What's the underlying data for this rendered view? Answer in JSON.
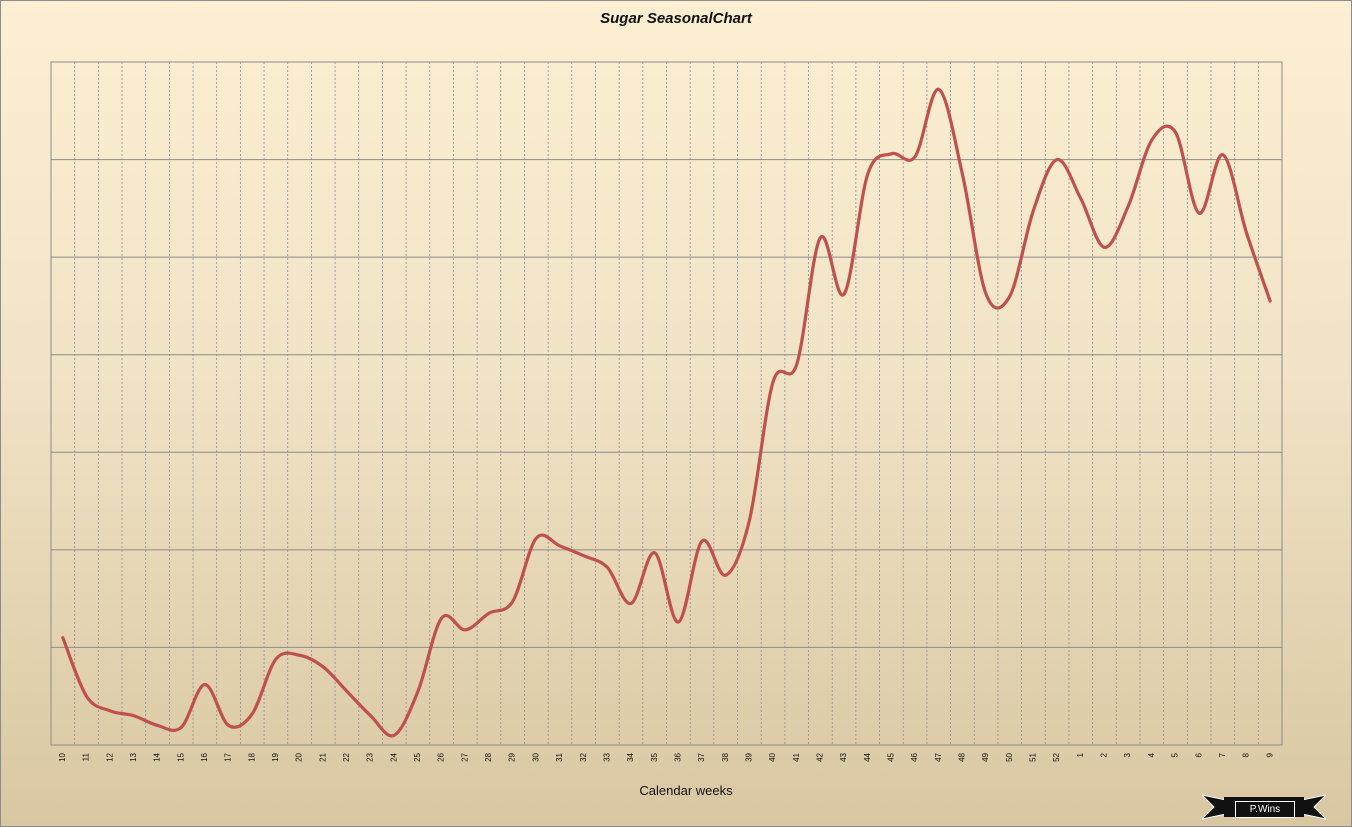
{
  "chart_data": {
    "type": "line",
    "title": "Sugar SeasonalChart",
    "xlabel": "Calendar weeks",
    "ylabel": "",
    "grid": true,
    "line_color": "#c0504d",
    "categories": [
      "10",
      "11",
      "12",
      "13",
      "14",
      "15",
      "16",
      "17",
      "18",
      "19",
      "20",
      "21",
      "22",
      "23",
      "24",
      "25",
      "26",
      "27",
      "28",
      "29",
      "30",
      "31",
      "32",
      "33",
      "34",
      "35",
      "36",
      "37",
      "38",
      "39",
      "40",
      "41",
      "42",
      "43",
      "44",
      "45",
      "46",
      "47",
      "48",
      "49",
      "50",
      "51",
      "52",
      "1",
      "2",
      "3",
      "4",
      "5",
      "6",
      "7",
      "8",
      "9"
    ],
    "values": [
      1.1,
      0.5,
      0.35,
      0.3,
      0.2,
      0.18,
      0.62,
      0.2,
      0.32,
      0.88,
      0.92,
      0.8,
      0.55,
      0.3,
      0.1,
      0.55,
      1.3,
      1.18,
      1.35,
      1.47,
      2.12,
      2.04,
      1.94,
      1.82,
      1.45,
      1.97,
      1.26,
      2.09,
      1.74,
      2.3,
      3.72,
      3.9,
      5.2,
      4.62,
      5.85,
      6.06,
      6.03,
      6.72,
      5.85,
      4.62,
      4.6,
      5.48,
      6.0,
      5.6,
      5.1,
      5.52,
      6.2,
      6.28,
      5.45,
      6.05,
      5.25,
      4.55
    ],
    "ylim": [
      0,
      7
    ]
  },
  "brand": {
    "logo_text": "P.Wins"
  }
}
